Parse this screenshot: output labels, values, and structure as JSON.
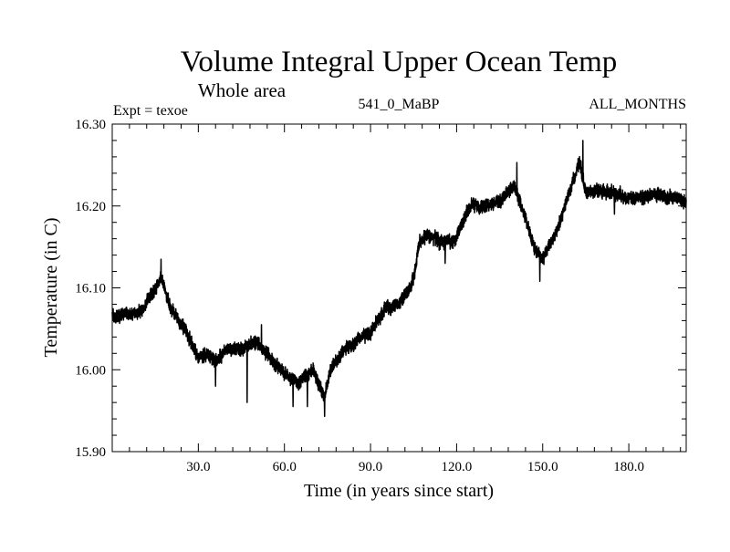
{
  "chart_data": {
    "type": "line",
    "title": "Volume Integral Upper Ocean Temp",
    "subtitle": "Whole area",
    "experiment_label": "Expt = texoe",
    "run_label": "541_0_MaBP",
    "months_label": "ALL_MONTHS",
    "xlabel": "Time (in years since start)",
    "ylabel": "Temperature (in C)",
    "xlim": [
      0,
      200
    ],
    "ylim": [
      15.9,
      16.3
    ],
    "x_ticks": [
      30,
      60,
      90,
      120,
      150,
      180
    ],
    "x_tick_labels": [
      "30.0",
      "60.0",
      "90.0",
      "120.0",
      "150.0",
      "180.0"
    ],
    "y_ticks": [
      15.9,
      16.0,
      16.1,
      16.2,
      16.3
    ],
    "y_tick_labels": [
      "15.90",
      "16.00",
      "16.10",
      "16.20",
      "16.30"
    ],
    "grid": false,
    "series": [
      {
        "name": "Temperature",
        "color": "#000000",
        "samples_per_year": 12,
        "noise_amplitude": 0.012,
        "trend_x": [
          0,
          5,
          10,
          15,
          17,
          20,
          23,
          26,
          30,
          33,
          36,
          40,
          45,
          50,
          55,
          60,
          65,
          70,
          74,
          76,
          80,
          85,
          90,
          95,
          100,
          105,
          107,
          110,
          115,
          120,
          123,
          125,
          130,
          135,
          140,
          143,
          147,
          150,
          155,
          160,
          163,
          165,
          170,
          175,
          180,
          185,
          190,
          195,
          200
        ],
        "trend_y": [
          16.065,
          16.068,
          16.07,
          16.1,
          16.112,
          16.08,
          16.06,
          16.045,
          16.015,
          16.02,
          16.01,
          16.025,
          16.025,
          16.035,
          16.015,
          15.995,
          15.985,
          16.0,
          15.965,
          16.0,
          16.02,
          16.035,
          16.045,
          16.075,
          16.08,
          16.11,
          16.155,
          16.165,
          16.155,
          16.16,
          16.19,
          16.2,
          16.2,
          16.205,
          16.225,
          16.195,
          16.15,
          16.135,
          16.17,
          16.225,
          16.255,
          16.215,
          16.22,
          16.215,
          16.21,
          16.21,
          16.215,
          16.21,
          16.205
        ],
        "spikes": [
          {
            "x": 17,
            "y": 16.135
          },
          {
            "x": 36,
            "y": 15.98
          },
          {
            "x": 47,
            "y": 15.96
          },
          {
            "x": 52,
            "y": 16.055
          },
          {
            "x": 63,
            "y": 15.955
          },
          {
            "x": 68,
            "y": 15.955
          },
          {
            "x": 74,
            "y": 15.943
          },
          {
            "x": 116,
            "y": 16.13
          },
          {
            "x": 141,
            "y": 16.253
          },
          {
            "x": 149,
            "y": 16.108
          },
          {
            "x": 164,
            "y": 16.28
          },
          {
            "x": 175,
            "y": 16.19
          }
        ]
      }
    ]
  }
}
